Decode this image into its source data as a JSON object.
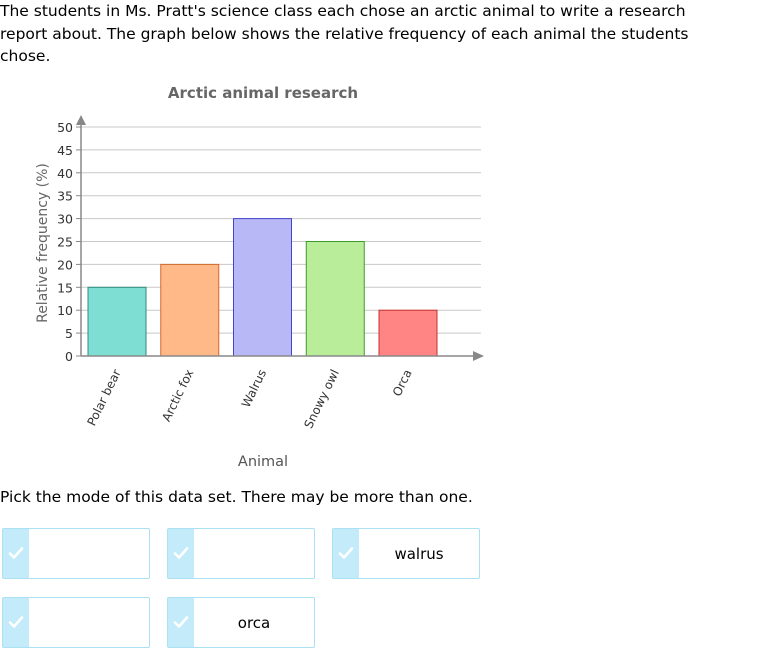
{
  "intro_text": "The students in Ms. Pratt's science class each chose an arctic animal to write a research report about. The graph below shows the relative frequency of each animal the students chose.",
  "question_text": "Pick the mode of this data set. There may be more than one.",
  "chart_data": {
    "type": "bar",
    "title": "Arctic animal research",
    "xlabel": "Animal",
    "ylabel": "Relative frequency (%)",
    "categories": [
      "Polar bear",
      "Arctic fox",
      "Walrus",
      "Snowy owl",
      "Orca"
    ],
    "values": [
      15,
      20,
      30,
      25,
      10
    ],
    "colors": [
      "#7fded4",
      "#ffb887",
      "#b9b8f7",
      "#baed9a",
      "#ff8585"
    ],
    "stroke_colors": [
      "#2e8b7d",
      "#d4692d",
      "#4545c8",
      "#3f9a2d",
      "#c83030"
    ],
    "ylim": [
      0,
      50
    ],
    "yticks": [
      "0",
      "5",
      "10",
      "15",
      "20",
      "25",
      "30",
      "35",
      "40",
      "45",
      "50"
    ],
    "grid": true
  },
  "answer_choices": [
    {
      "label": ""
    },
    {
      "label": ""
    },
    {
      "label": "walrus"
    },
    {
      "label": ""
    },
    {
      "label": "orca"
    }
  ],
  "colors": {
    "choice_border": "#ace0f3",
    "choice_tab": "#c3ebfa",
    "check": "#ffffff"
  },
  "icons": {
    "choice_check": "checkmark-icon"
  }
}
